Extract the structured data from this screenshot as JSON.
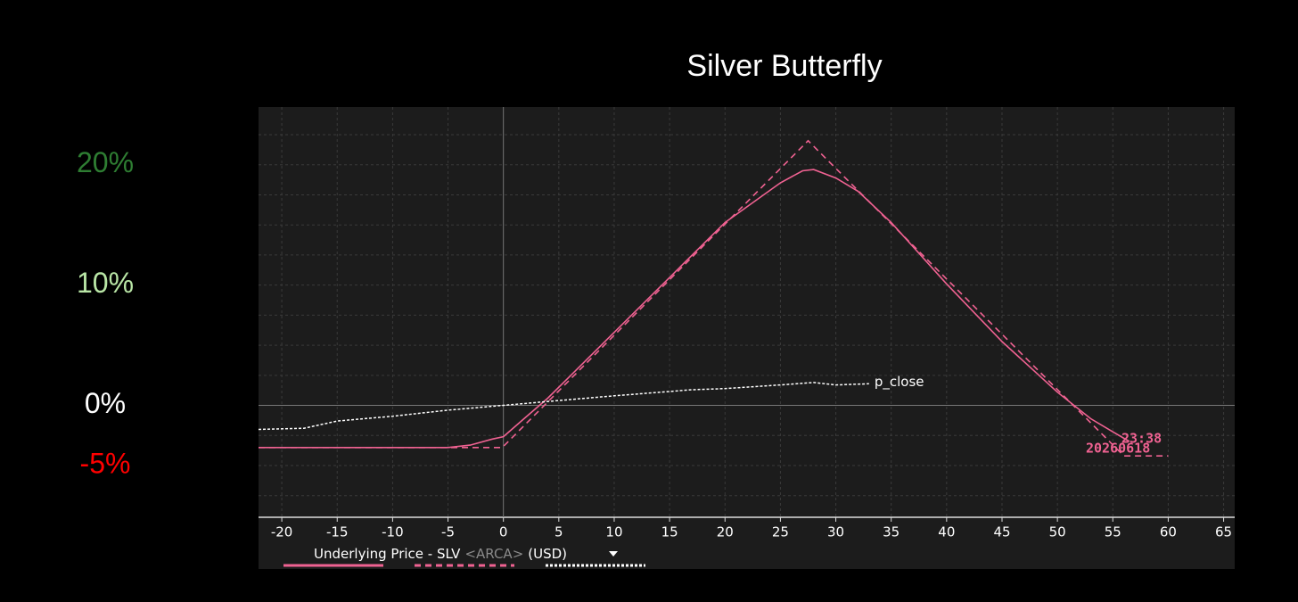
{
  "chart_data": {
    "type": "line",
    "title": "Silver Butterfly",
    "x_label_parts": [
      "Underlying Price - SLV",
      "<ARCA>",
      "(USD)"
    ],
    "xlim": [
      -22.1,
      66
    ],
    "xticks": [
      -20,
      -15,
      -10,
      -5,
      0,
      5,
      10,
      15,
      20,
      25,
      30,
      35,
      40,
      45,
      50,
      55,
      60,
      65
    ],
    "ylim": [
      -9.3,
      24.8
    ],
    "yticks": [
      {
        "value": 20,
        "label": "20%"
      },
      {
        "value": 10,
        "label": "10%"
      },
      {
        "value": 0,
        "label": "0%"
      },
      {
        "value": -5,
        "label": "-5%"
      }
    ],
    "ytick_colors": [
      "#2e7d32",
      "#b9e6a6",
      "#ffffff",
      "#ff0000"
    ],
    "ygrid": [
      -7.5,
      -5,
      -2.5,
      2.5,
      5,
      7.5,
      10,
      12.5,
      15,
      17.5,
      20,
      22.5
    ],
    "grid": true,
    "series": [
      {
        "color": "#f06292",
        "style": "solid",
        "x": [
          -22.1,
          -5,
          -3,
          -1,
          0,
          2,
          4,
          20,
          25,
          27,
          28,
          30,
          32,
          35,
          40,
          45,
          50,
          53,
          55,
          56.5
        ],
        "values": [
          -3.5,
          -3.5,
          -3.3,
          -2.8,
          -2.6,
          -1.0,
          0.6,
          15.2,
          18.5,
          19.5,
          19.6,
          18.9,
          17.8,
          15.2,
          10.1,
          5.3,
          1.1,
          -1.1,
          -2.2,
          -3.0
        ]
      },
      {
        "color": "#f06292",
        "style": "dashed",
        "x": [
          -22.1,
          -0.1,
          27.5,
          56,
          60
        ],
        "values": [
          -3.5,
          -3.5,
          22.0,
          -4.2,
          -4.2
        ]
      },
      {
        "name": "p_close",
        "color": "#ffffff",
        "style": "dotted",
        "x": [
          -22.1,
          -18,
          -15,
          -10,
          -5,
          0,
          5,
          10,
          17,
          20,
          25,
          28,
          30,
          33
        ],
        "values": [
          -2.0,
          -1.9,
          -1.3,
          -0.9,
          -0.4,
          0,
          0.4,
          0.8,
          1.3,
          1.4,
          1.7,
          1.9,
          1.7,
          1.8
        ]
      }
    ],
    "annotations": [
      "23:38",
      "20260618"
    ]
  }
}
